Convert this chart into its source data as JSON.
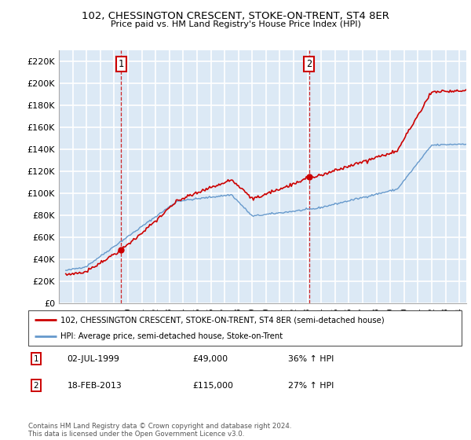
{
  "title1": "102, CHESSINGTON CRESCENT, STOKE-ON-TRENT, ST4 8ER",
  "title2": "Price paid vs. HM Land Registry's House Price Index (HPI)",
  "ylabel_ticks": [
    "£0",
    "£20K",
    "£40K",
    "£60K",
    "£80K",
    "£100K",
    "£120K",
    "£140K",
    "£160K",
    "£180K",
    "£200K",
    "£220K"
  ],
  "ylabel_values": [
    0,
    20000,
    40000,
    60000,
    80000,
    100000,
    120000,
    140000,
    160000,
    180000,
    200000,
    220000
  ],
  "xlim_start": 1995.3,
  "xlim_end": 2024.5,
  "ylim_min": 0,
  "ylim_max": 230000,
  "sale1_year": 1999.5,
  "sale1_price": 49000,
  "sale2_year": 2013.12,
  "sale2_price": 115000,
  "legend_line1": "102, CHESSINGTON CRESCENT, STOKE-ON-TRENT, ST4 8ER (semi-detached house)",
  "legend_line2": "HPI: Average price, semi-detached house, Stoke-on-Trent",
  "annotation1_date": "02-JUL-1999",
  "annotation1_price": "£49,000",
  "annotation1_hpi": "36% ↑ HPI",
  "annotation2_date": "18-FEB-2013",
  "annotation2_price": "£115,000",
  "annotation2_hpi": "27% ↑ HPI",
  "footnote": "Contains HM Land Registry data © Crown copyright and database right 2024.\nThis data is licensed under the Open Government Licence v3.0.",
  "bg_color": "#dce9f5",
  "grid_color": "#ffffff",
  "red_line_color": "#cc0000",
  "blue_line_color": "#6699cc"
}
